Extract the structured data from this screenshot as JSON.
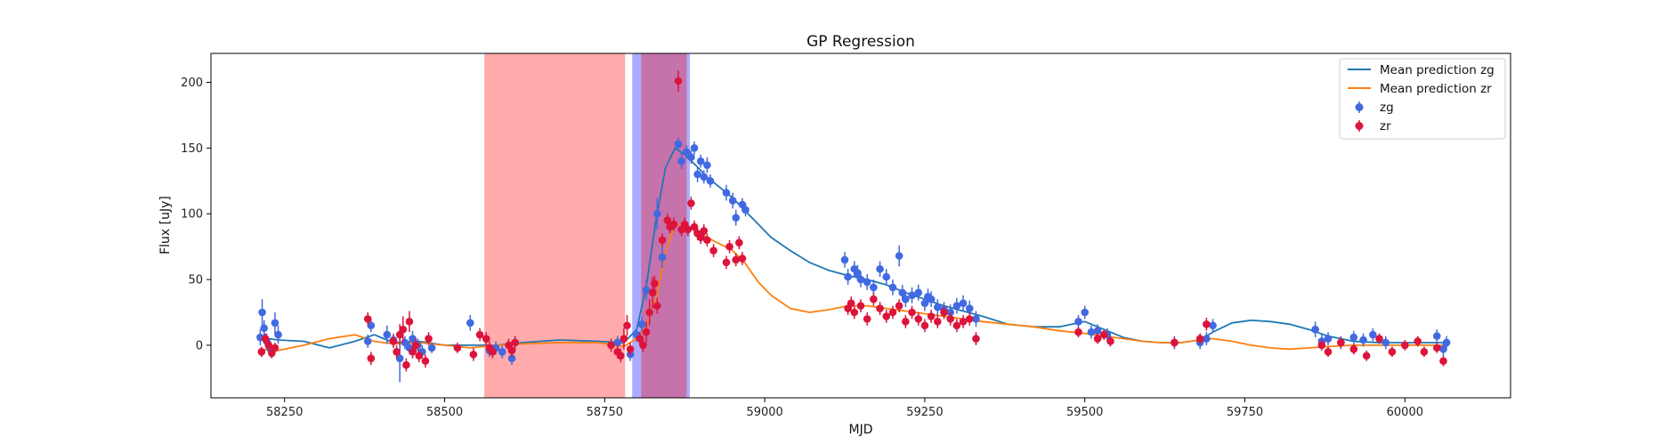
{
  "chart_data": {
    "type": "scatter",
    "title": "GP Regression",
    "xlabel": "MJD",
    "ylabel": "Flux [uJy]",
    "xlim": [
      58135,
      60165
    ],
    "ylim": [
      -40,
      222
    ],
    "xticks": [
      58250,
      58500,
      58750,
      59000,
      59250,
      59500,
      59750,
      60000
    ],
    "yticks": [
      0,
      50,
      100,
      150,
      200
    ],
    "grid": false,
    "legend_position": "top-right",
    "colors": {
      "zg_line": "#1f77b4",
      "zr_line": "#ff7f0e",
      "zg_points": "#4169e1",
      "zr_points": "#dc143c",
      "zr_span": "#ff0000",
      "zg_span": "#0000ff",
      "axes": "#000000"
    },
    "shaded_regions": [
      {
        "x0": 58562,
        "x1": 58782,
        "color": "#ff0000",
        "alpha": 0.33
      },
      {
        "x0": 58793,
        "x1": 58883,
        "color": "#0000ff",
        "alpha": 0.33
      },
      {
        "x0": 58807,
        "x1": 58878,
        "color": "#ff0000",
        "alpha": 0.33
      }
    ],
    "series": [
      {
        "name": "Mean prediction zg",
        "kind": "line",
        "color": "#1f77b4",
        "x": [
          58210,
          58240,
          58280,
          58320,
          58360,
          58390,
          58420,
          58460,
          58500,
          58540,
          58580,
          58620,
          58680,
          58740,
          58780,
          58800,
          58815,
          58830,
          58845,
          58860,
          58875,
          58890,
          58910,
          58930,
          58950,
          58970,
          58990,
          59010,
          59040,
          59070,
          59100,
          59130,
          59160,
          59190,
          59220,
          59250,
          59280,
          59310,
          59340,
          59380,
          59420,
          59460,
          59500,
          59530,
          59560,
          59590,
          59620,
          59650,
          59680,
          59700,
          59730,
          59760,
          59790,
          59820,
          59850,
          59880,
          59920,
          59960,
          60000,
          60040,
          60065
        ],
        "y": [
          6,
          4,
          3,
          -2,
          3,
          8,
          2,
          3,
          0,
          0,
          0,
          2,
          4,
          3,
          2,
          12,
          45,
          95,
          135,
          150,
          145,
          138,
          128,
          120,
          112,
          102,
          92,
          82,
          72,
          63,
          57,
          53,
          50,
          46,
          40,
          35,
          30,
          26,
          22,
          16,
          14,
          14,
          18,
          12,
          6,
          3,
          2,
          2,
          4,
          10,
          17,
          19,
          18,
          16,
          12,
          7,
          3,
          2,
          2,
          2,
          2
        ]
      },
      {
        "name": "Mean prediction zr",
        "kind": "line",
        "color": "#ff7f0e",
        "x": [
          58210,
          58240,
          58280,
          58320,
          58360,
          58390,
          58420,
          58460,
          58500,
          58540,
          58580,
          58620,
          58680,
          58740,
          58780,
          58800,
          58815,
          58830,
          58845,
          58860,
          58875,
          58890,
          58910,
          58930,
          58950,
          58970,
          58990,
          59010,
          59040,
          59070,
          59100,
          59130,
          59160,
          59190,
          59220,
          59250,
          59280,
          59310,
          59340,
          59380,
          59420,
          59460,
          59500,
          59530,
          59560,
          59590,
          59620,
          59650,
          59680,
          59700,
          59730,
          59760,
          59790,
          59820,
          59850,
          59880,
          59920,
          59960,
          60000,
          60040,
          60065
        ],
        "y": [
          -3,
          -4,
          0,
          5,
          8,
          3,
          1,
          2,
          0,
          -2,
          0,
          1,
          2,
          2,
          -1,
          5,
          15,
          35,
          70,
          92,
          92,
          88,
          82,
          77,
          72,
          62,
          48,
          38,
          28,
          25,
          27,
          30,
          30,
          28,
          26,
          24,
          22,
          20,
          18,
          16,
          14,
          11,
          9,
          7,
          5,
          3,
          2,
          2,
          4,
          5,
          3,
          0,
          -2,
          -3,
          -2,
          -1,
          0,
          0,
          0,
          0,
          0
        ]
      },
      {
        "name": "zg",
        "kind": "errorbar",
        "color": "#4169e1",
        "x": [
          58212,
          58215,
          58218,
          58222,
          58228,
          58235,
          58240,
          58380,
          58385,
          58410,
          58420,
          58430,
          58438,
          58445,
          58450,
          58458,
          58465,
          58480,
          58540,
          58570,
          58580,
          58590,
          58605,
          58610,
          58770,
          58790,
          58800,
          58808,
          58815,
          58832,
          58840,
          58865,
          58870,
          58878,
          58885,
          58890,
          58895,
          58900,
          58905,
          58910,
          58915,
          58940,
          58950,
          58955,
          58965,
          58970,
          59125,
          59130,
          59140,
          59145,
          59150,
          59160,
          59170,
          59180,
          59190,
          59200,
          59210,
          59215,
          59220,
          59230,
          59240,
          59250,
          59255,
          59260,
          59270,
          59280,
          59290,
          59300,
          59310,
          59320,
          59330,
          59490,
          59500,
          59510,
          59520,
          59535,
          59640,
          59680,
          59690,
          59700,
          59860,
          59870,
          59880,
          59900,
          59920,
          59935,
          59950,
          59970,
          60050,
          60060,
          60065
        ],
        "y": [
          6,
          25,
          13,
          3,
          -3,
          17,
          8,
          3,
          15,
          8,
          4,
          -10,
          2,
          -2,
          5,
          0,
          -5,
          -2,
          17,
          -4,
          -2,
          -5,
          -10,
          2,
          2,
          -7,
          8,
          16,
          42,
          100,
          67,
          153,
          140,
          147,
          143,
          150,
          130,
          140,
          128,
          137,
          125,
          116,
          110,
          97,
          107,
          103,
          65,
          52,
          58,
          55,
          50,
          48,
          44,
          58,
          52,
          44,
          68,
          40,
          35,
          38,
          40,
          32,
          37,
          35,
          29,
          27,
          25,
          30,
          32,
          28,
          20,
          18,
          25,
          10,
          11,
          8,
          2,
          2,
          5,
          15,
          12,
          3,
          5,
          2,
          6,
          4,
          8,
          2,
          7,
          -3,
          2
        ],
        "yerr": [
          6,
          10,
          6,
          6,
          6,
          8,
          7,
          5,
          5,
          7,
          5,
          18,
          5,
          5,
          6,
          5,
          5,
          4,
          6,
          5,
          5,
          5,
          5,
          5,
          5,
          5,
          5,
          6,
          8,
          12,
          8,
          5,
          6,
          5,
          5,
          5,
          6,
          5,
          5,
          6,
          5,
          6,
          6,
          6,
          5,
          5,
          6,
          6,
          6,
          6,
          6,
          6,
          6,
          6,
          6,
          6,
          8,
          6,
          6,
          6,
          6,
          6,
          6,
          6,
          6,
          6,
          6,
          6,
          6,
          6,
          6,
          5,
          5,
          5,
          5,
          5,
          5,
          5,
          5,
          5,
          6,
          5,
          5,
          5,
          5,
          5,
          5,
          5,
          5,
          5,
          5
        ]
      },
      {
        "name": "zr",
        "kind": "errorbar",
        "color": "#dc143c",
        "x": [
          58214,
          58220,
          58225,
          58230,
          58235,
          58380,
          58385,
          58420,
          58425,
          58430,
          58435,
          58440,
          58445,
          58450,
          58455,
          58460,
          58470,
          58475,
          58520,
          58545,
          58555,
          58565,
          58570,
          58575,
          58600,
          58605,
          58610,
          58760,
          58770,
          58775,
          58780,
          58785,
          58790,
          58805,
          58810,
          58815,
          58820,
          58825,
          58828,
          58832,
          58840,
          58848,
          58852,
          58858,
          58865,
          58870,
          58875,
          58880,
          58885,
          58890,
          58895,
          58900,
          58905,
          58910,
          58920,
          58940,
          58945,
          58955,
          58960,
          58965,
          59130,
          59135,
          59140,
          59150,
          59160,
          59170,
          59180,
          59190,
          59200,
          59210,
          59220,
          59230,
          59240,
          59250,
          59260,
          59270,
          59280,
          59290,
          59300,
          59310,
          59320,
          59330,
          59490,
          59520,
          59530,
          59540,
          59640,
          59680,
          59690,
          59870,
          59880,
          59900,
          59920,
          59940,
          59960,
          59980,
          60000,
          60020,
          60030,
          60050,
          60060
        ],
        "y": [
          -5,
          5,
          0,
          -6,
          -2,
          20,
          -10,
          3,
          -5,
          8,
          12,
          -15,
          18,
          -5,
          0,
          -8,
          -12,
          5,
          -2,
          -7,
          8,
          5,
          -2,
          -5,
          0,
          -4,
          2,
          0,
          -5,
          -8,
          5,
          15,
          -3,
          5,
          0,
          10,
          25,
          40,
          47,
          30,
          80,
          95,
          90,
          92,
          201,
          88,
          92,
          88,
          108,
          90,
          85,
          82,
          87,
          80,
          72,
          63,
          75,
          65,
          78,
          66,
          28,
          32,
          25,
          30,
          20,
          35,
          28,
          22,
          25,
          30,
          18,
          25,
          20,
          15,
          22,
          18,
          25,
          20,
          15,
          18,
          20,
          5,
          10,
          5,
          8,
          3,
          2,
          5,
          16,
          0,
          -5,
          2,
          -3,
          -8,
          5,
          -5,
          0,
          3,
          -5,
          -2,
          -12
        ],
        "yerr": [
          4,
          4,
          4,
          4,
          4,
          5,
          5,
          5,
          5,
          8,
          10,
          5,
          8,
          5,
          5,
          5,
          5,
          5,
          4,
          5,
          5,
          5,
          5,
          5,
          5,
          5,
          5,
          5,
          5,
          5,
          8,
          8,
          5,
          5,
          5,
          8,
          10,
          12,
          6,
          6,
          5,
          5,
          5,
          5,
          8,
          5,
          5,
          5,
          5,
          5,
          5,
          5,
          5,
          5,
          5,
          5,
          5,
          5,
          5,
          5,
          5,
          5,
          5,
          5,
          5,
          5,
          5,
          5,
          5,
          5,
          5,
          5,
          5,
          5,
          5,
          5,
          5,
          5,
          5,
          5,
          5,
          5,
          4,
          4,
          4,
          4,
          4,
          4,
          5,
          4,
          4,
          4,
          4,
          4,
          4,
          4,
          4,
          4,
          4,
          4,
          4
        ]
      }
    ]
  }
}
